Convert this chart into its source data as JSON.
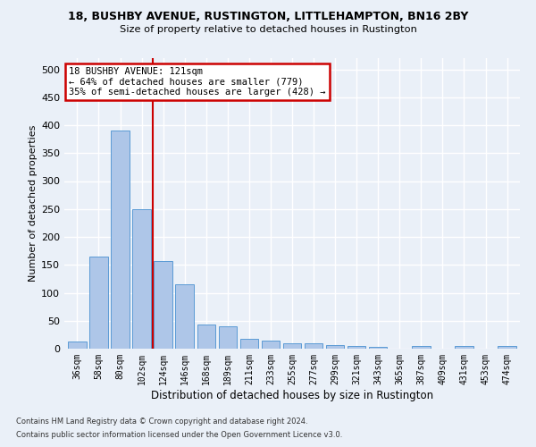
{
  "title1": "18, BUSHBY AVENUE, RUSTINGTON, LITTLEHAMPTON, BN16 2BY",
  "title2": "Size of property relative to detached houses in Rustington",
  "xlabel": "Distribution of detached houses by size in Rustington",
  "ylabel": "Number of detached properties",
  "footer1": "Contains HM Land Registry data © Crown copyright and database right 2024.",
  "footer2": "Contains public sector information licensed under the Open Government Licence v3.0.",
  "annotation_line1": "18 BUSHBY AVENUE: 121sqm",
  "annotation_line2": "← 64% of detached houses are smaller (779)",
  "annotation_line3": "35% of semi-detached houses are larger (428) →",
  "bar_color": "#aec6e8",
  "bar_edge_color": "#5b9bd5",
  "ref_line_color": "#cc0000",
  "annotation_box_color": "#cc0000",
  "background_color": "#eaf0f8",
  "fig_background_color": "#eaf0f8",
  "grid_color": "#ffffff",
  "categories": [
    "36sqm",
    "58sqm",
    "80sqm",
    "102sqm",
    "124sqm",
    "146sqm",
    "168sqm",
    "189sqm",
    "211sqm",
    "233sqm",
    "255sqm",
    "277sqm",
    "299sqm",
    "321sqm",
    "343sqm",
    "365sqm",
    "387sqm",
    "409sqm",
    "431sqm",
    "453sqm",
    "474sqm"
  ],
  "values": [
    13,
    165,
    390,
    250,
    157,
    115,
    43,
    40,
    18,
    15,
    10,
    9,
    6,
    5,
    4,
    0,
    5,
    0,
    5,
    0,
    5
  ],
  "ref_line_x": 3.5,
  "ylim": [
    0,
    520
  ],
  "yticks": [
    0,
    50,
    100,
    150,
    200,
    250,
    300,
    350,
    400,
    450,
    500
  ]
}
